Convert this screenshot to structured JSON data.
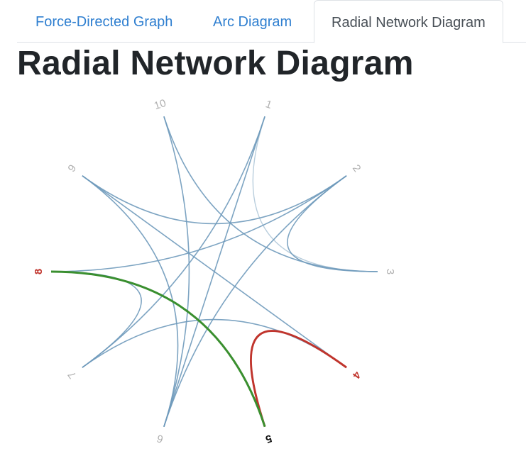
{
  "tabs": [
    {
      "label": "Force-Directed Graph",
      "active": false
    },
    {
      "label": "Arc Diagram",
      "active": false
    },
    {
      "label": "Radial Network Diagram",
      "active": true
    }
  ],
  "page_title": "Radial Network Diagram",
  "colors": {
    "link": "#6f9abb",
    "link_light": "#b9cedd",
    "label": "#b0b0b0",
    "highlight_red": "#c0342c",
    "highlight_green": "#3a8f2f",
    "selected_label": "#111111"
  },
  "diagram": {
    "nodes": [
      {
        "id": "1",
        "state": "normal"
      },
      {
        "id": "2",
        "state": "normal"
      },
      {
        "id": "3",
        "state": "normal"
      },
      {
        "id": "4",
        "state": "highlight"
      },
      {
        "id": "5",
        "state": "selected"
      },
      {
        "id": "6",
        "state": "normal"
      },
      {
        "id": "7",
        "state": "normal"
      },
      {
        "id": "8",
        "state": "highlight"
      },
      {
        "id": "9",
        "state": "normal"
      },
      {
        "id": "10",
        "state": "normal"
      }
    ],
    "links": [
      {
        "source": "1",
        "target": "3",
        "style": "light"
      },
      {
        "source": "1",
        "target": "6",
        "style": "normal"
      },
      {
        "source": "1",
        "target": "7",
        "style": "normal"
      },
      {
        "source": "2",
        "target": "3",
        "style": "normal"
      },
      {
        "source": "2",
        "target": "6",
        "style": "normal"
      },
      {
        "source": "2",
        "target": "8",
        "style": "normal"
      },
      {
        "source": "2",
        "target": "9",
        "style": "normal"
      },
      {
        "source": "3",
        "target": "10",
        "style": "normal"
      },
      {
        "source": "4",
        "target": "7",
        "style": "normal"
      },
      {
        "source": "4",
        "target": "9",
        "style": "normal"
      },
      {
        "source": "6",
        "target": "10",
        "style": "normal"
      },
      {
        "source": "7",
        "target": "8",
        "style": "normal"
      },
      {
        "source": "9",
        "target": "6",
        "style": "normal"
      },
      {
        "source": "4",
        "target": "5",
        "style": "red"
      },
      {
        "source": "5",
        "target": "8",
        "style": "green"
      }
    ]
  }
}
